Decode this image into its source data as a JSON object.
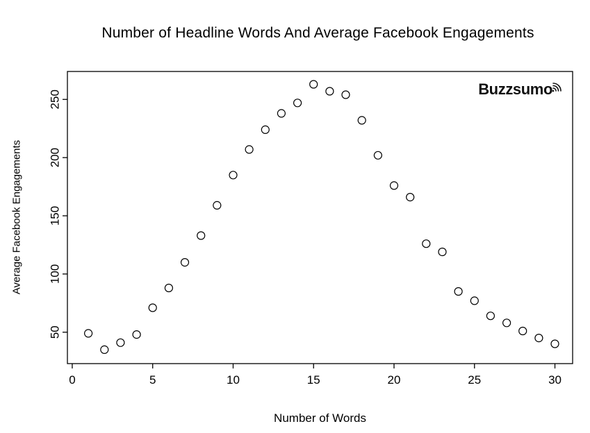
{
  "logo": {
    "text": "Buzzsumo"
  },
  "chart_data": {
    "type": "scatter",
    "title": "Number of Headline Words And Average Facebook Engagements",
    "xlabel": "Number of Words",
    "ylabel": "Average Facebook Engagements",
    "x": [
      1,
      2,
      3,
      4,
      5,
      6,
      7,
      8,
      9,
      10,
      11,
      12,
      13,
      14,
      15,
      16,
      17,
      18,
      19,
      20,
      21,
      22,
      23,
      24,
      25,
      26,
      27,
      28,
      29,
      30
    ],
    "y": [
      49,
      35,
      41,
      48,
      71,
      88,
      110,
      133,
      159,
      185,
      207,
      224,
      238,
      247,
      263,
      257,
      254,
      232,
      202,
      176,
      166,
      126,
      119,
      85,
      77,
      64,
      58,
      51,
      45,
      40
    ],
    "xticks": [
      0,
      5,
      10,
      15,
      20,
      25,
      30
    ],
    "yticks": [
      50,
      100,
      150,
      200,
      250
    ],
    "xlim": [
      -0.3,
      31.1
    ],
    "ylim": [
      23,
      274
    ],
    "point_style": "open-circle",
    "point_color": "#000000",
    "background": "#ffffff",
    "grid": false,
    "legend": "none"
  }
}
